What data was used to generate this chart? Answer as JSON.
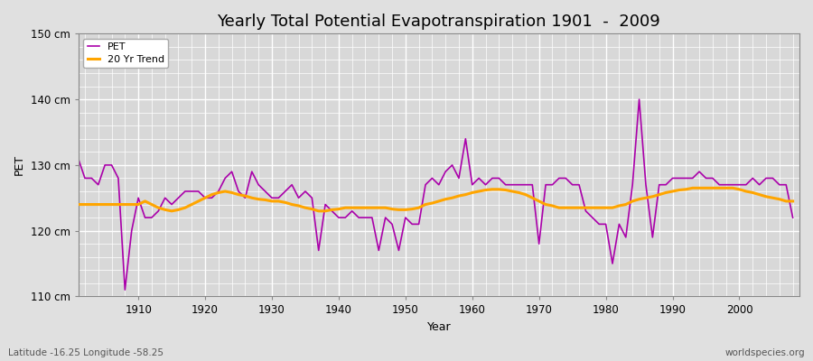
{
  "title": "Yearly Total Potential Evapotranspiration 1901  -  2009",
  "xlabel": "Year",
  "ylabel": "PET",
  "subtitle": "Latitude -16.25 Longitude -58.25",
  "watermark": "worldspecies.org",
  "ylim": [
    110,
    150
  ],
  "xlim": [
    1901,
    2009
  ],
  "yticks": [
    110,
    120,
    130,
    140,
    150
  ],
  "ytick_labels": [
    "110 cm",
    "120 cm",
    "130 cm",
    "140 cm",
    "150 cm"
  ],
  "xticks": [
    1910,
    1920,
    1930,
    1940,
    1950,
    1960,
    1970,
    1980,
    1990,
    2000
  ],
  "pet_color": "#AA00AA",
  "trend_color": "#FFA500",
  "fig_bg_color": "#E0E0E0",
  "plot_bg_color": "#D8D8D8",
  "grid_color": "#FFFFFF",
  "pet_values": [
    131,
    128,
    128,
    127,
    130,
    130,
    128,
    111,
    120,
    125,
    122,
    122,
    123,
    125,
    124,
    125,
    126,
    126,
    126,
    125,
    125,
    126,
    128,
    129,
    126,
    125,
    129,
    127,
    126,
    125,
    125,
    126,
    127,
    125,
    126,
    125,
    117,
    124,
    123,
    122,
    122,
    123,
    122,
    122,
    122,
    117,
    122,
    121,
    117,
    122,
    121,
    121,
    127,
    128,
    127,
    129,
    130,
    128,
    134,
    127,
    128,
    127,
    128,
    128,
    127,
    127,
    127,
    127,
    127,
    118,
    127,
    127,
    128,
    128,
    127,
    127,
    123,
    122,
    121,
    121,
    115,
    121,
    119,
    127,
    140,
    127,
    119,
    127,
    127,
    128,
    128,
    128,
    128,
    129,
    128,
    128,
    127,
    127,
    127,
    127,
    127,
    128,
    127,
    128,
    128,
    127,
    127,
    122
  ],
  "trend_values": [
    124.0,
    124.0,
    124.0,
    124.0,
    124.0,
    124.0,
    124.0,
    124.0,
    124.0,
    124.0,
    124.5,
    124.0,
    123.5,
    123.2,
    123.0,
    123.2,
    123.5,
    124.0,
    124.5,
    125.0,
    125.5,
    125.8,
    126.0,
    125.8,
    125.5,
    125.3,
    125.0,
    124.8,
    124.7,
    124.5,
    124.5,
    124.3,
    124.0,
    123.8,
    123.5,
    123.3,
    123.0,
    123.0,
    123.2,
    123.3,
    123.5,
    123.5,
    123.5,
    123.5,
    123.5,
    123.5,
    123.5,
    123.3,
    123.2,
    123.2,
    123.3,
    123.5,
    124.0,
    124.2,
    124.5,
    124.8,
    125.0,
    125.3,
    125.5,
    125.8,
    126.0,
    126.2,
    126.3,
    126.3,
    126.2,
    126.0,
    125.8,
    125.5,
    125.0,
    124.5,
    124.0,
    123.8,
    123.5,
    123.5,
    123.5,
    123.5,
    123.5,
    123.5,
    123.5,
    123.5,
    123.5,
    123.8,
    124.0,
    124.5,
    124.8,
    125.0,
    125.2,
    125.5,
    125.8,
    126.0,
    126.2,
    126.3,
    126.5,
    126.5,
    126.5,
    126.5,
    126.5,
    126.5,
    126.5,
    126.3,
    126.0,
    125.8,
    125.5,
    125.2,
    125.0,
    124.8,
    124.5,
    124.5
  ],
  "legend_pet": "PET",
  "legend_trend": "20 Yr Trend",
  "title_fontsize": 13,
  "axis_label_fontsize": 9,
  "tick_fontsize": 8.5,
  "subtitle_fontsize": 7.5,
  "watermark_fontsize": 7.5
}
